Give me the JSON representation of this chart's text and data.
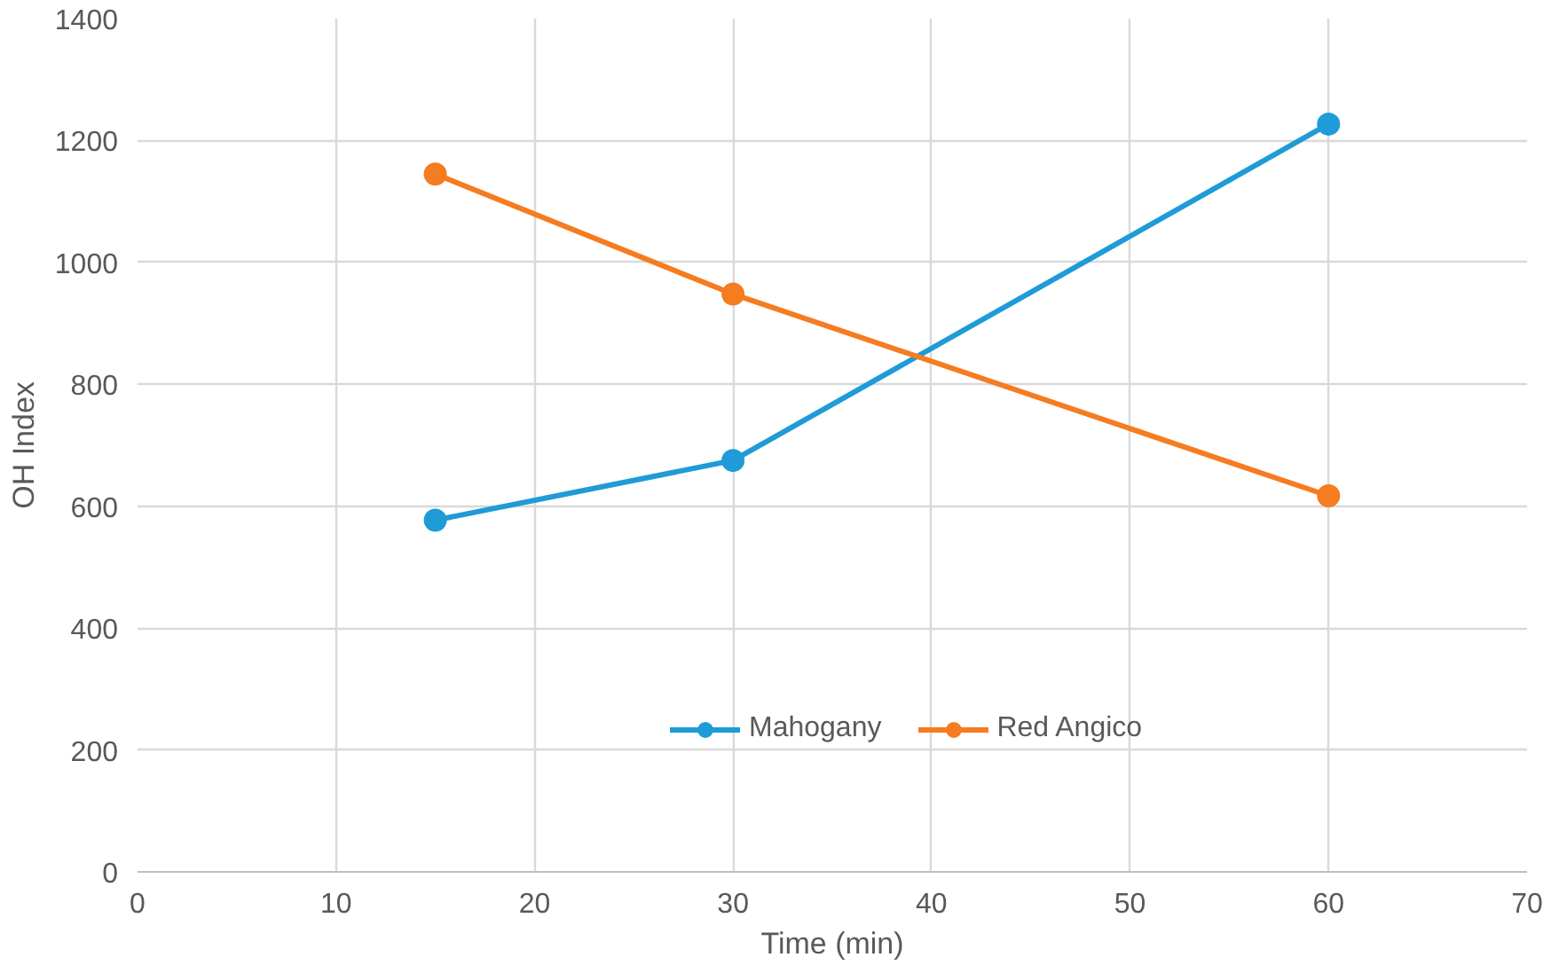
{
  "chart_data": {
    "type": "line",
    "xlabel": "Time (min)",
    "ylabel": "OH Index",
    "series": [
      {
        "name": "Mahogany",
        "color": "#1f9bd7",
        "x": [
          15,
          30,
          60
        ],
        "values": [
          577,
          675,
          1227
        ]
      },
      {
        "name": "Red Angico",
        "color": "#f57c20",
        "x": [
          15,
          30,
          60
        ],
        "values": [
          1145,
          948,
          617
        ]
      }
    ],
    "xlim": [
      0,
      70
    ],
    "xticks": [
      0,
      10,
      20,
      30,
      40,
      50,
      60,
      70
    ],
    "ylim": [
      0,
      1400
    ],
    "yticks": [
      0,
      200,
      400,
      600,
      800,
      1000,
      1200,
      1400
    ],
    "grid": true,
    "legend": "bottom right",
    "marker": "circle",
    "line_style": "solid"
  }
}
